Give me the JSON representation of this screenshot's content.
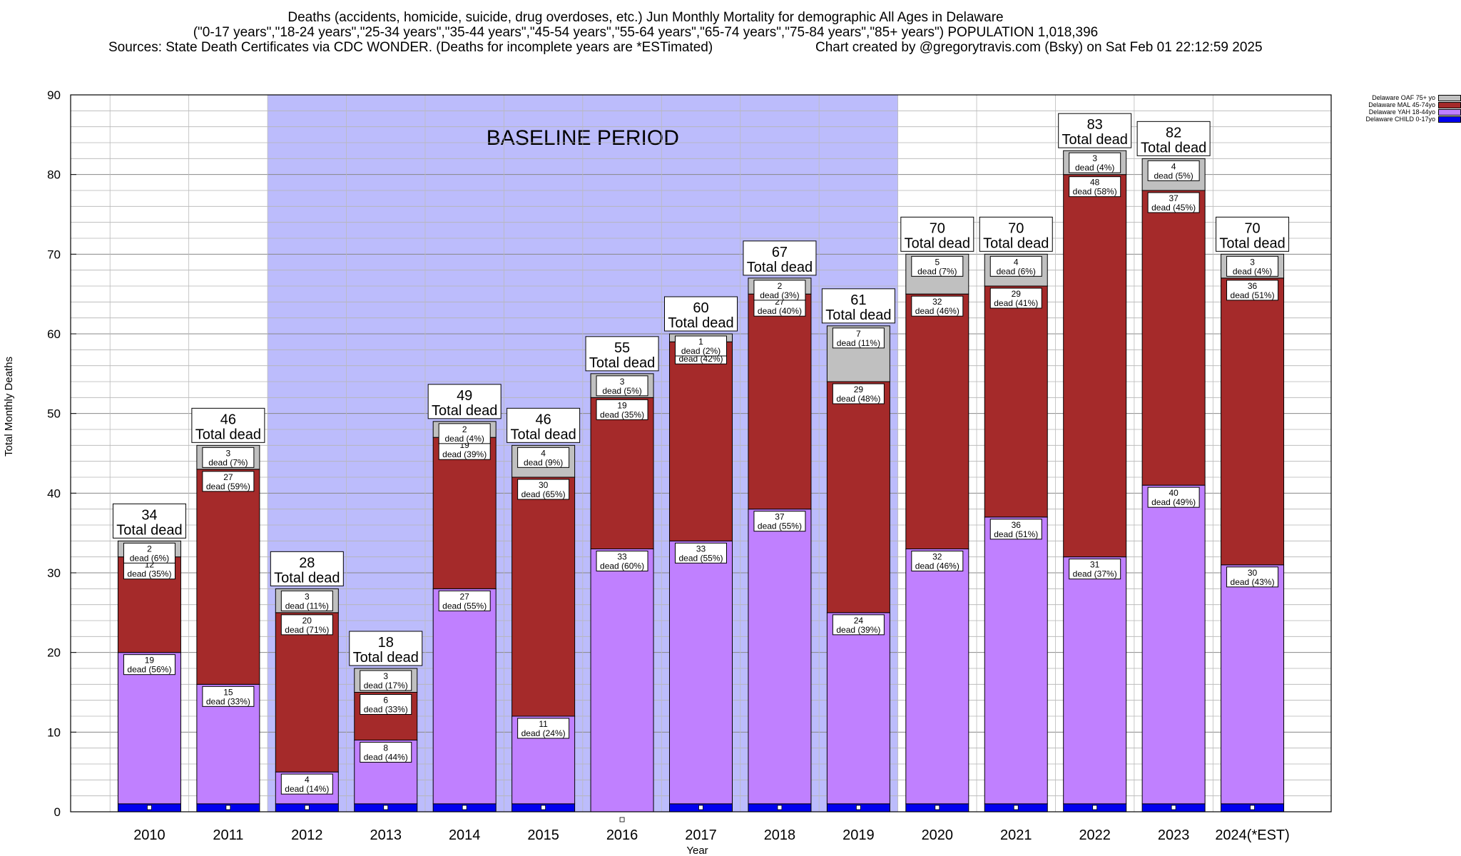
{
  "header": {
    "line1": "Deaths (accidents, homicide, suicide, drug overdoses, etc.) Jun Monthly Mortality for demographic All Ages in Delaware",
    "line2": "(\"0-17 years\",\"18-24 years\",\"25-34 years\",\"35-44 years\",\"45-54 years\",\"55-64 years\",\"65-74 years\",\"75-84 years\",\"85+ years\") POPULATION 1,018,396",
    "line3_left": "Sources: State Death Certificates via CDC WONDER. (Deaths for incomplete years are *ESTimated)",
    "line3_right": "Chart created by @gregorytravis.com (Bsky) on Sat Feb 01 22:12:59 2025"
  },
  "colors": {
    "baseline_band": "#bcbcfc",
    "oaf": "#c0c0c0",
    "mal": "#a52a2a",
    "yah": "#c080ff",
    "child": "#0000ee"
  },
  "chart_data": {
    "type": "bar",
    "stacked": true,
    "xlabel": "Year",
    "ylabel": "Total Monthly Deaths",
    "ylim": [
      0,
      90
    ],
    "yticks": [
      0,
      10,
      20,
      30,
      40,
      50,
      60,
      70,
      80,
      90
    ],
    "minor_grid_step": 2,
    "baseline_label": "BASELINE PERIOD",
    "baseline_range": [
      "2012",
      "2019"
    ],
    "total_label": "Total dead",
    "dead_label": "dead",
    "categories": [
      "2010",
      "2011",
      "2012",
      "2013",
      "2014",
      "2015",
      "2016",
      "2017",
      "2018",
      "2019",
      "2020",
      "2021",
      "2022",
      "2023",
      "2024(*EST)"
    ],
    "totals": [
      34,
      46,
      28,
      18,
      49,
      46,
      55,
      60,
      67,
      61,
      70,
      70,
      83,
      82,
      70
    ],
    "legend_position": "top-right",
    "series": [
      {
        "name": "Delaware CHILD 0-17yo",
        "key": "child",
        "values": [
          1,
          1,
          1,
          1,
          1,
          1,
          0,
          1,
          1,
          1,
          1,
          1,
          1,
          1,
          1
        ]
      },
      {
        "name": "Delaware YAH 18-44yo",
        "key": "yah",
        "values": [
          19,
          15,
          4,
          8,
          27,
          11,
          33,
          33,
          37,
          24,
          32,
          36,
          31,
          40,
          30
        ],
        "pct": [
          "56%",
          "33%",
          "14%",
          "44%",
          "55%",
          "24%",
          "60%",
          "55%",
          "55%",
          "39%",
          "46%",
          "51%",
          "37%",
          "49%",
          "43%"
        ]
      },
      {
        "name": "Delaware MAL 45-74yo",
        "key": "mal",
        "values": [
          12,
          27,
          20,
          6,
          19,
          30,
          19,
          25,
          27,
          29,
          32,
          29,
          48,
          37,
          36
        ],
        "pct": [
          "35%",
          "59%",
          "71%",
          "33%",
          "39%",
          "65%",
          "35%",
          "42%",
          "40%",
          "48%",
          "46%",
          "41%",
          "58%",
          "45%",
          "51%"
        ]
      },
      {
        "name": "Delaware OAF 75+ yo",
        "key": "oaf",
        "values": [
          2,
          3,
          3,
          3,
          2,
          4,
          3,
          1,
          2,
          7,
          5,
          4,
          3,
          4,
          3
        ],
        "pct": [
          "6%",
          "7%",
          "11%",
          "17%",
          "4%",
          "9%",
          "5%",
          "2%",
          "3%",
          "11%",
          "7%",
          "6%",
          "4%",
          "5%",
          "4%"
        ]
      }
    ]
  }
}
